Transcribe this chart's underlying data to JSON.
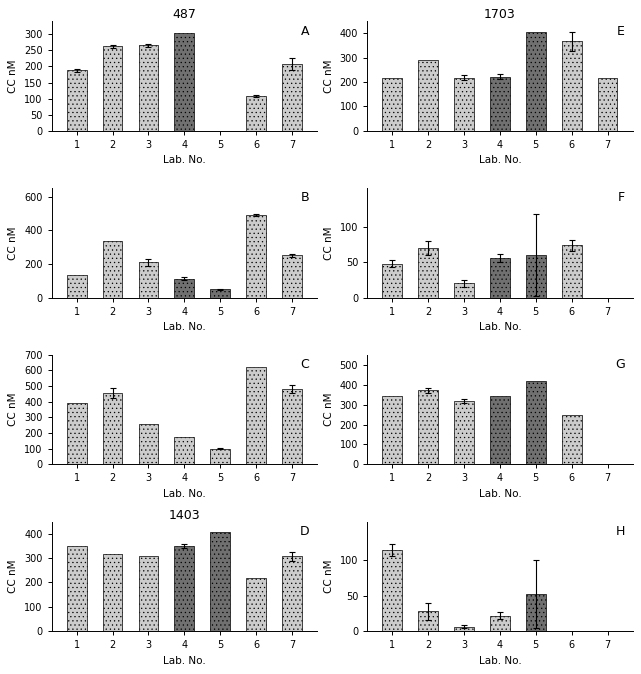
{
  "panels_left": [
    {
      "label": "A",
      "title": "487",
      "ylim": [
        0,
        340
      ],
      "yticks": [
        0,
        50,
        100,
        150,
        200,
        250,
        300
      ],
      "bars": [
        {
          "lab": 1,
          "val": 188,
          "err": 5,
          "dark": false
        },
        {
          "lab": 2,
          "val": 262,
          "err": 6,
          "dark": false
        },
        {
          "lab": 3,
          "val": 265,
          "err": 5,
          "dark": false
        },
        {
          "lab": 4,
          "val": 305,
          "err": 0,
          "dark": true
        },
        {
          "lab": 5,
          "val": null,
          "err": 0,
          "dark": false
        },
        {
          "lab": 6,
          "val": 108,
          "err": 3,
          "dark": false
        },
        {
          "lab": 7,
          "val": 208,
          "err": 18,
          "dark": false
        }
      ]
    },
    {
      "label": "B",
      "title": "",
      "ylim": [
        0,
        650
      ],
      "yticks": [
        0,
        200,
        400,
        600
      ],
      "bars": [
        {
          "lab": 1,
          "val": 135,
          "err": 0,
          "dark": false
        },
        {
          "lab": 2,
          "val": 335,
          "err": 0,
          "dark": false
        },
        {
          "lab": 3,
          "val": 210,
          "err": 20,
          "dark": false
        },
        {
          "lab": 4,
          "val": 112,
          "err": 10,
          "dark": true
        },
        {
          "lab": 5,
          "val": 48,
          "err": 5,
          "dark": true
        },
        {
          "lab": 6,
          "val": 490,
          "err": 8,
          "dark": false
        },
        {
          "lab": 7,
          "val": 250,
          "err": 7,
          "dark": false
        }
      ]
    },
    {
      "label": "C",
      "title": "",
      "ylim": [
        0,
        700
      ],
      "yticks": [
        0,
        100,
        200,
        300,
        400,
        500,
        600,
        700
      ],
      "bars": [
        {
          "lab": 1,
          "val": 395,
          "err": 0,
          "dark": false
        },
        {
          "lab": 2,
          "val": 455,
          "err": 30,
          "dark": false
        },
        {
          "lab": 3,
          "val": 258,
          "err": 0,
          "dark": false
        },
        {
          "lab": 4,
          "val": 175,
          "err": 0,
          "dark": false
        },
        {
          "lab": 5,
          "val": 100,
          "err": 5,
          "dark": false
        },
        {
          "lab": 6,
          "val": 620,
          "err": 0,
          "dark": false
        },
        {
          "lab": 7,
          "val": 480,
          "err": 25,
          "dark": false
        }
      ]
    },
    {
      "label": "D",
      "title": "1403",
      "ylim": [
        0,
        450
      ],
      "yticks": [
        0,
        100,
        200,
        300,
        400
      ],
      "bars": [
        {
          "lab": 1,
          "val": 348,
          "err": 0,
          "dark": false
        },
        {
          "lab": 2,
          "val": 318,
          "err": 0,
          "dark": false
        },
        {
          "lab": 3,
          "val": 308,
          "err": 0,
          "dark": false
        },
        {
          "lab": 4,
          "val": 348,
          "err": 8,
          "dark": true
        },
        {
          "lab": 5,
          "val": 408,
          "err": 0,
          "dark": true
        },
        {
          "lab": 6,
          "val": 220,
          "err": 0,
          "dark": false
        },
        {
          "lab": 7,
          "val": 308,
          "err": 18,
          "dark": false
        }
      ]
    }
  ],
  "panels_right": [
    {
      "label": "E",
      "title": "1703",
      "ylim": [
        0,
        450
      ],
      "yticks": [
        0,
        100,
        200,
        300,
        400
      ],
      "bars": [
        {
          "lab": 1,
          "val": 215,
          "err": 0,
          "dark": false
        },
        {
          "lab": 2,
          "val": 292,
          "err": 0,
          "dark": false
        },
        {
          "lab": 3,
          "val": 218,
          "err": 10,
          "dark": false
        },
        {
          "lab": 4,
          "val": 222,
          "err": 10,
          "dark": true
        },
        {
          "lab": 5,
          "val": 408,
          "err": 0,
          "dark": true
        },
        {
          "lab": 6,
          "val": 368,
          "err": 40,
          "dark": false
        },
        {
          "lab": 7,
          "val": 218,
          "err": 0,
          "dark": false
        }
      ]
    },
    {
      "label": "F",
      "title": "",
      "ylim": [
        0,
        155
      ],
      "yticks": [
        0,
        50,
        100
      ],
      "bars": [
        {
          "lab": 1,
          "val": 48,
          "err": 5,
          "dark": false
        },
        {
          "lab": 2,
          "val": 70,
          "err": 10,
          "dark": false
        },
        {
          "lab": 3,
          "val": 20,
          "err": 5,
          "dark": false
        },
        {
          "lab": 4,
          "val": 56,
          "err": 5,
          "dark": true
        },
        {
          "lab": 5,
          "val": 60,
          "err": 58,
          "dark": true
        },
        {
          "lab": 6,
          "val": 74,
          "err": 8,
          "dark": false
        },
        {
          "lab": 7,
          "val": null,
          "err": 0,
          "dark": false
        }
      ]
    },
    {
      "label": "G",
      "title": "",
      "ylim": [
        0,
        550
      ],
      "yticks": [
        0,
        100,
        200,
        300,
        400,
        500
      ],
      "bars": [
        {
          "lab": 1,
          "val": 345,
          "err": 0,
          "dark": false
        },
        {
          "lab": 2,
          "val": 372,
          "err": 12,
          "dark": false
        },
        {
          "lab": 3,
          "val": 318,
          "err": 12,
          "dark": false
        },
        {
          "lab": 4,
          "val": 345,
          "err": 0,
          "dark": true
        },
        {
          "lab": 5,
          "val": 418,
          "err": 0,
          "dark": true
        },
        {
          "lab": 6,
          "val": 248,
          "err": 0,
          "dark": false
        },
        {
          "lab": 7,
          "val": null,
          "err": 0,
          "dark": false
        }
      ]
    },
    {
      "label": "H",
      "title": "",
      "ylim": [
        0,
        155
      ],
      "yticks": [
        0,
        50,
        100
      ],
      "bars": [
        {
          "lab": 1,
          "val": 115,
          "err": 8,
          "dark": false
        },
        {
          "lab": 2,
          "val": 28,
          "err": 12,
          "dark": false
        },
        {
          "lab": 3,
          "val": 6,
          "err": 2,
          "dark": false
        },
        {
          "lab": 4,
          "val": 22,
          "err": 5,
          "dark": false
        },
        {
          "lab": 5,
          "val": 52,
          "err": 48,
          "dark": true
        },
        {
          "lab": 6,
          "val": null,
          "err": 0,
          "dark": false
        },
        {
          "lab": 7,
          "val": null,
          "err": 0,
          "dark": false
        }
      ]
    }
  ],
  "xlabel": "Lab. No.",
  "ylabel": "CC nM",
  "bar_width": 0.55
}
